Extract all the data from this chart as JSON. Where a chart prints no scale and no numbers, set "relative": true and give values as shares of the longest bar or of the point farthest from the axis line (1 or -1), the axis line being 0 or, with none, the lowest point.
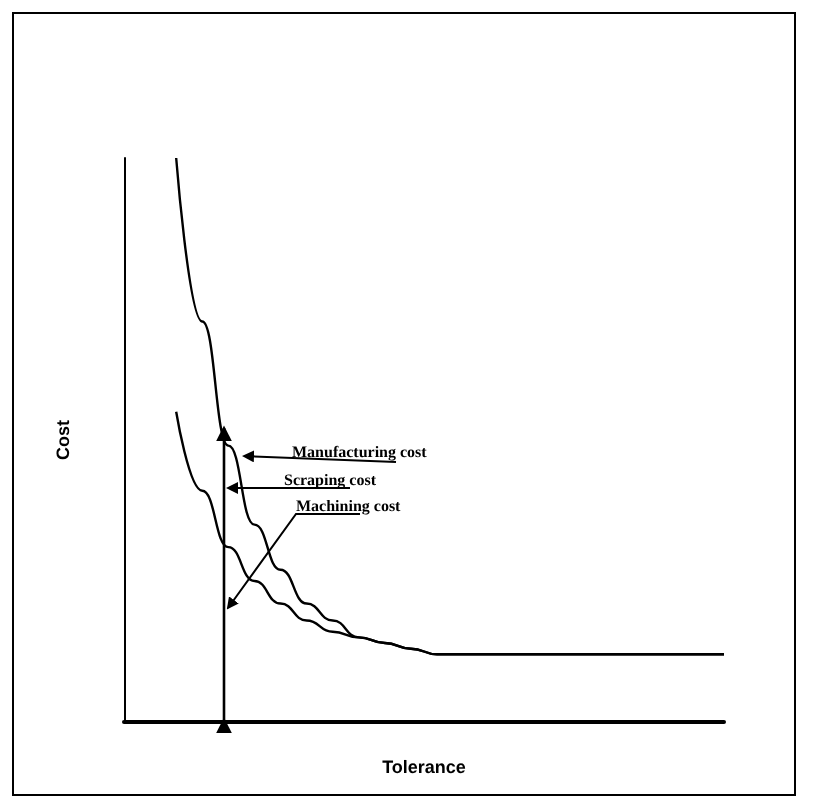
{
  "chart_data": {
    "type": "line",
    "relative": true,
    "xlabel": "Tolerance",
    "ylabel": "Cost",
    "grid": false,
    "marker": "none",
    "line_style": "solid",
    "categories": [
      null,
      null,
      null,
      null,
      null,
      null,
      null,
      null,
      null,
      null,
      null,
      null,
      null,
      null,
      null,
      null,
      null,
      null,
      null,
      null,
      null,
      null,
      null,
      null
    ],
    "series": [
      {
        "color": "#000000",
        "values": [
          null,
          null,
          1.0,
          0.71,
          0.49,
          0.35,
          0.27,
          0.21,
          0.18,
          0.15,
          0.14,
          0.13,
          0.12,
          0.12,
          0.12,
          0.12,
          0.12,
          0.12,
          0.12,
          0.12,
          0.12,
          0.12,
          0.12,
          0.12
        ]
      },
      {
        "color": "#000000",
        "values": [
          null,
          null,
          0.55,
          0.41,
          0.31,
          0.25,
          0.21,
          0.18,
          0.16,
          0.15,
          0.14,
          0.13,
          0.12,
          0.12,
          0.12,
          0.12,
          0.12,
          0.12,
          0.12,
          0.12,
          0.12,
          0.12,
          0.12,
          0.12
        ]
      }
    ],
    "annotations": [
      "Manufacturing cost",
      "Scraping cost",
      "Machining cost"
    ]
  }
}
